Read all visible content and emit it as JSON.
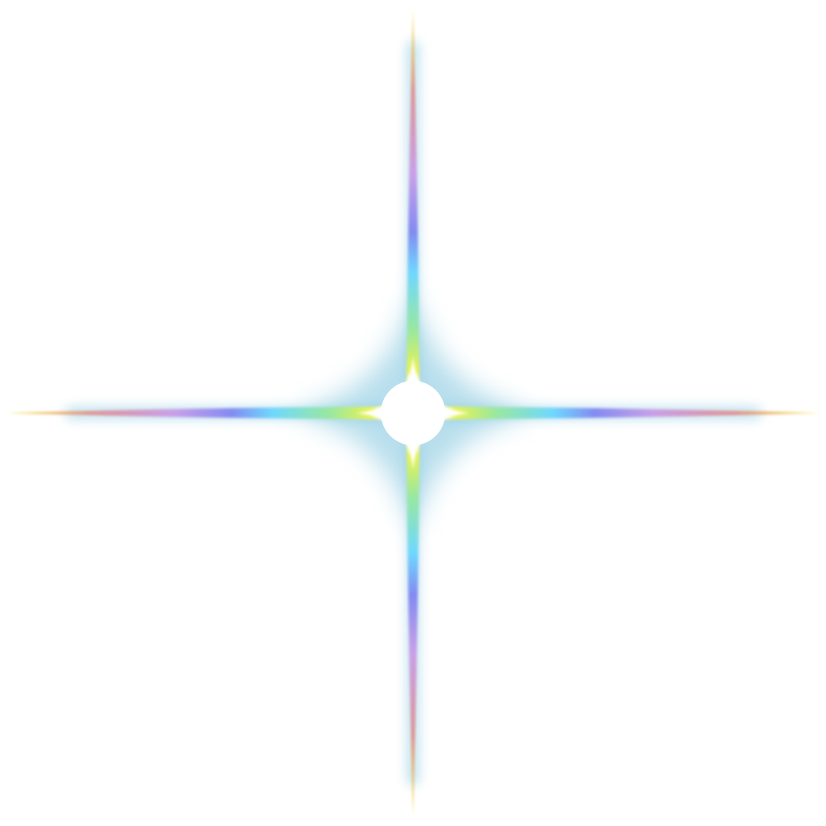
{
  "scene": {
    "background_color": "#ffffff",
    "subject": "four-pointed-sparkle",
    "glow_color": "#7cc3dd",
    "core_color": "#ffffff",
    "spectrum_colors": [
      "#f5d940",
      "#e08f8f",
      "#c99be8",
      "#7f86f0",
      "#6ad6ff",
      "#98e89a",
      "#eef54a"
    ]
  }
}
